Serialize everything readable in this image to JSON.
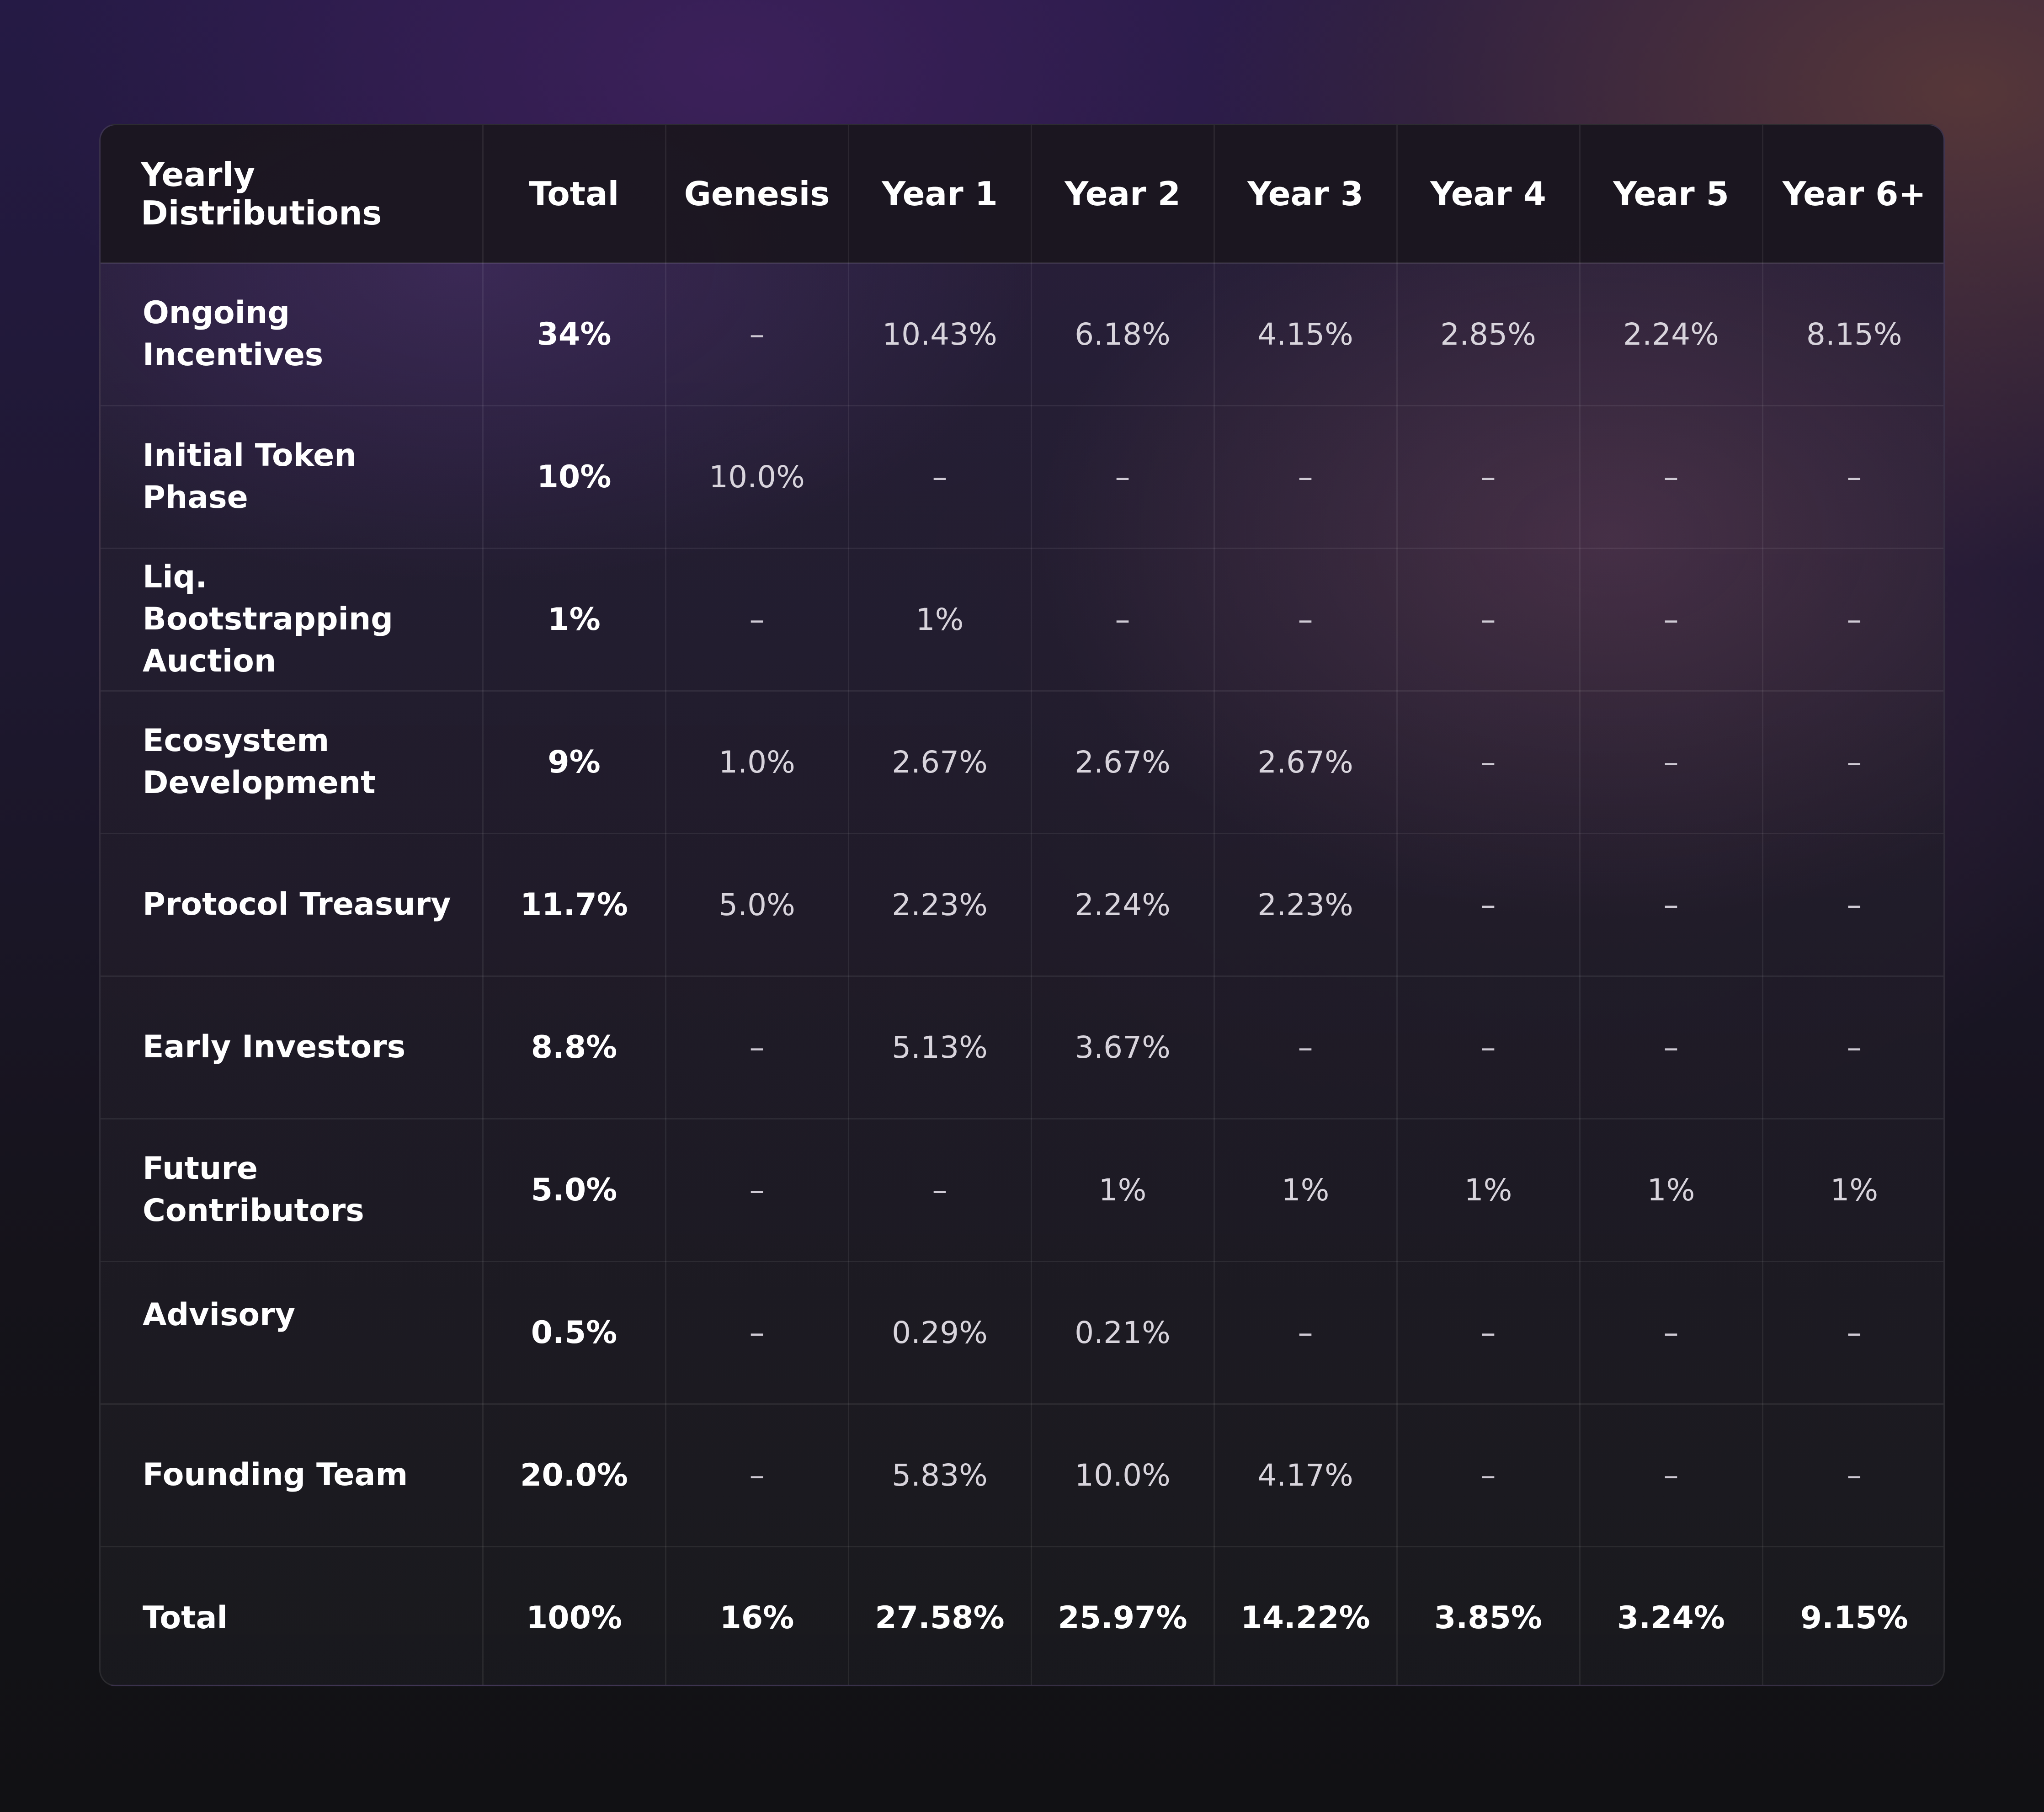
{
  "header": {
    "label": "Yearly Distributions",
    "columns": [
      "Total",
      "Genesis",
      "Year 1",
      "Year 2",
      "Year 3",
      "Year 4",
      "Year 5",
      "Year 6+"
    ]
  },
  "rows": [
    {
      "label": "Ongoing Incentives",
      "total": "34%",
      "values": [
        "–",
        "10.43%",
        "6.18%",
        "4.15%",
        "2.85%",
        "2.24%",
        "8.15%"
      ]
    },
    {
      "label": "Initial Token Phase",
      "total": "10%",
      "values": [
        "10.0%",
        "–",
        "–",
        "–",
        "–",
        "–",
        "–"
      ]
    },
    {
      "label": "Liq. Bootstrapping Auction",
      "total": "1%",
      "values": [
        "–",
        "1%",
        "–",
        "–",
        "–",
        "–",
        "–"
      ]
    },
    {
      "label": "Ecosystem Development",
      "total": "9%",
      "values": [
        "1.0%",
        "2.67%",
        "2.67%",
        "2.67%",
        "–",
        "–",
        "–"
      ]
    },
    {
      "label": "Protocol Treasury",
      "total": "11.7%",
      "values": [
        "5.0%",
        "2.23%",
        "2.24%",
        "2.23%",
        "–",
        "–",
        "–"
      ]
    },
    {
      "label": "Early Investors",
      "total": "8.8%",
      "values": [
        "–",
        "5.13%",
        "3.67%",
        "–",
        "–",
        "–",
        "–"
      ]
    },
    {
      "label": "Future Contributors",
      "total": "5.0%",
      "values": [
        "–",
        "–",
        "1%",
        "1%",
        "1%",
        "1%",
        "1%"
      ]
    },
    {
      "label": "Advisory",
      "total": "0.5%",
      "values": [
        "–",
        "0.29%",
        "0.21%",
        "–",
        "–",
        "–",
        "–"
      ]
    },
    {
      "label": "Founding Team",
      "total": "20.0%",
      "values": [
        "–",
        "5.83%",
        "10.0%",
        "4.17%",
        "–",
        "–",
        "–"
      ]
    }
  ],
  "totals": {
    "label": "Total",
    "total": "100%",
    "values": [
      "16%",
      "27.58%",
      "25.97%",
      "14.22%",
      "3.85%",
      "3.24%",
      "9.15%"
    ]
  }
}
